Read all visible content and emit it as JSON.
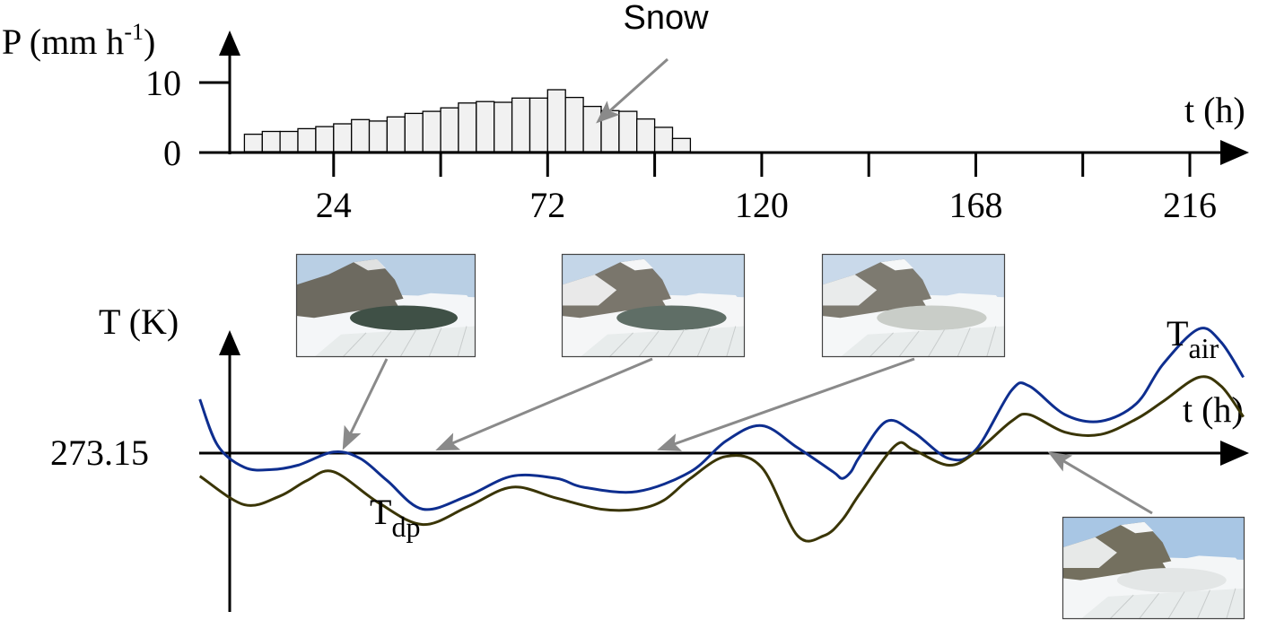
{
  "chart_data": [
    {
      "type": "bar",
      "title": "",
      "ylabel_base": "P (mm h",
      "ylabel_sup": "-1",
      "ylabel_close": ")",
      "xlabel": "t (h)",
      "annotation": "Snow",
      "yticks": [
        "0",
        "10"
      ],
      "ylim": [
        0,
        10
      ],
      "xticks": [
        "24",
        "72",
        "120",
        "168",
        "216"
      ],
      "xtick_values": [
        24,
        72,
        120,
        168,
        216
      ],
      "xlim": [
        -6,
        228
      ],
      "bar_width_h": 4,
      "bar_color": "#f1f1f1",
      "x": [
        6,
        10,
        14,
        18,
        22,
        26,
        30,
        34,
        38,
        42,
        46,
        50,
        54,
        58,
        62,
        66,
        70,
        74,
        78,
        82,
        86,
        90,
        94,
        98,
        102
      ],
      "values": [
        2.5,
        2.9,
        2.9,
        3.3,
        3.6,
        4.0,
        4.6,
        4.4,
        5.0,
        5.5,
        5.8,
        6.3,
        7.0,
        7.2,
        7.1,
        7.7,
        7.7,
        8.9,
        7.8,
        6.5,
        5.9,
        5.8,
        4.7,
        3.5,
        1.9
      ]
    },
    {
      "type": "line",
      "ylabel": "T (K)",
      "xlabel": "t (h)",
      "reference_label": "273.15",
      "reference_value": 273.15,
      "xlim": [
        -6,
        228
      ],
      "ylim": [
        267,
        288
      ],
      "series": [
        {
          "name_base": "T",
          "name_sub": "air",
          "color": "#0e2e8f",
          "x": [
            -6,
            -2,
            4,
            10,
            16,
            24,
            30,
            36,
            44,
            54,
            64,
            74,
            80,
            92,
            104,
            112,
            120,
            128,
            136,
            138,
            140,
            142,
            148,
            154,
            162,
            168,
            176,
            180,
            188,
            196,
            204,
            210,
            218,
            223,
            228
          ],
          "y": [
            275.6,
            273.5,
            272.5,
            272.4,
            272.6,
            273.2,
            272.9,
            271.9,
            270.6,
            271.2,
            272.1,
            272.0,
            271.6,
            271.4,
            272.3,
            273.7,
            274.4,
            273.4,
            272.3,
            272.0,
            272.3,
            273.0,
            274.6,
            274.1,
            272.9,
            273.3,
            276.0,
            276.2,
            274.9,
            274.6,
            275.4,
            277.2,
            278.8,
            278.2,
            276.6
          ]
        },
        {
          "name_base": "T",
          "name_sub": "dp",
          "color": "#3a3506",
          "x": [
            -6,
            4,
            12,
            18,
            24,
            34,
            44,
            54,
            64,
            74,
            84,
            92,
            98,
            104,
            112,
            120,
            128,
            134,
            138,
            142,
            150,
            154,
            162,
            168,
            176,
            180,
            188,
            196,
            204,
            210,
            218,
            223,
            228
          ],
          "y": [
            272.1,
            270.8,
            271.2,
            271.9,
            272.3,
            270.9,
            269.9,
            270.7,
            271.6,
            271.1,
            270.6,
            270.6,
            271.0,
            272.0,
            273.0,
            272.5,
            269.4,
            269.4,
            270.1,
            271.3,
            273.5,
            273.3,
            272.6,
            273.2,
            274.6,
            274.9,
            274.1,
            274.0,
            274.7,
            275.5,
            276.6,
            276.2,
            274.8
          ]
        }
      ]
    }
  ],
  "thumbnails": [
    {
      "name": "thumbnail-lake-open-water",
      "scene": "open-water",
      "sky": "#b9cfe4",
      "snow": "#f4f6f8",
      "lake": "#3f5046",
      "rock": "#6d6a60",
      "target_t": 22,
      "target_temp": 273.15
    },
    {
      "name": "thumbnail-lake-partial-ice",
      "scene": "partial-ice",
      "sky": "#c4d6e8",
      "snow": "#f5f6f7",
      "lake": "#5f6e66",
      "rock": "#7a766c",
      "target_t": 34,
      "target_temp": 273.15
    },
    {
      "name": "thumbnail-lake-frozen",
      "scene": "frozen",
      "sky": "#c9d9ea",
      "snow": "#f5f7f8",
      "lake": "#c9cdc8",
      "rock": "#7d7a70",
      "target_t": 98,
      "target_temp": 273.15
    },
    {
      "name": "thumbnail-lake-melting",
      "scene": "melting",
      "sky": "#a8c6e4",
      "snow": "#f4f6f7",
      "lake": "#e3e6e6",
      "rock": "#74705f",
      "target_t": 182,
      "target_temp": 273.15
    }
  ]
}
